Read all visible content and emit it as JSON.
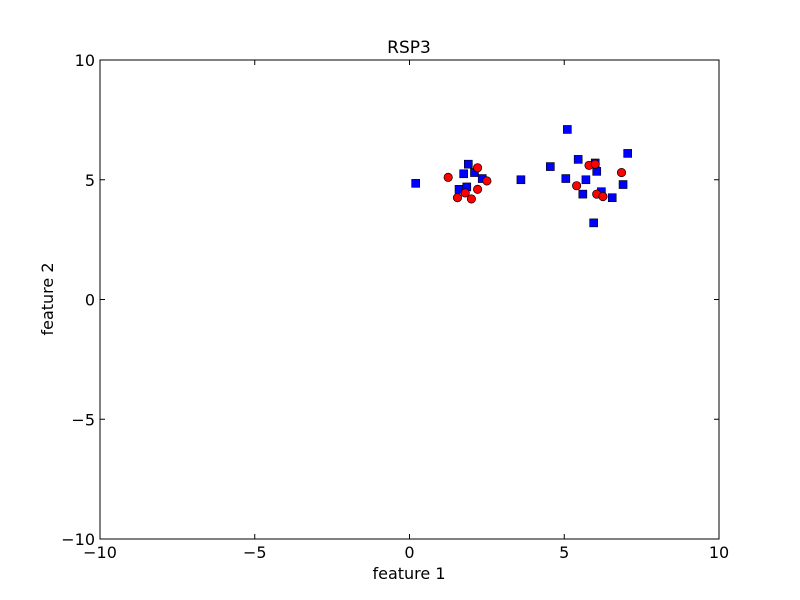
{
  "chart_data": {
    "type": "scatter",
    "title": "RSP3",
    "xlabel": "feature 1",
    "ylabel": "feature 2",
    "xlim": [
      -10,
      10
    ],
    "ylim": [
      -10,
      10
    ],
    "xticks": [
      -10,
      -5,
      0,
      5,
      10
    ],
    "yticks": [
      -10,
      -5,
      0,
      5,
      10
    ],
    "xtick_labels": [
      "−10",
      "−5",
      "0",
      "5",
      "10"
    ],
    "ytick_labels": [
      "−10",
      "−5",
      "0",
      "5",
      "10"
    ],
    "grid": false,
    "legend": "none",
    "series": [
      {
        "marker": "square",
        "color": "#0000ff",
        "x": [
          0.2,
          1.6,
          1.75,
          1.9,
          1.85,
          2.1,
          2.35,
          3.6,
          4.55,
          5.1,
          5.05,
          5.45,
          5.6,
          5.7,
          5.95,
          6.0,
          6.05,
          6.2,
          6.55,
          6.9,
          7.05
        ],
        "y": [
          4.85,
          4.6,
          5.25,
          5.65,
          4.7,
          5.3,
          5.05,
          5.0,
          5.55,
          7.1,
          5.05,
          5.85,
          4.4,
          5.0,
          3.2,
          5.7,
          5.35,
          4.5,
          4.25,
          4.8,
          6.1
        ]
      },
      {
        "marker": "circle",
        "color": "#ff0000",
        "x": [
          1.25,
          1.55,
          1.8,
          2.0,
          2.2,
          2.2,
          2.5,
          5.4,
          5.8,
          6.0,
          6.05,
          6.25,
          6.85
        ],
        "y": [
          5.1,
          4.25,
          4.45,
          4.2,
          5.5,
          4.6,
          4.95,
          4.75,
          5.6,
          5.65,
          4.4,
          4.3,
          5.3
        ]
      }
    ]
  }
}
